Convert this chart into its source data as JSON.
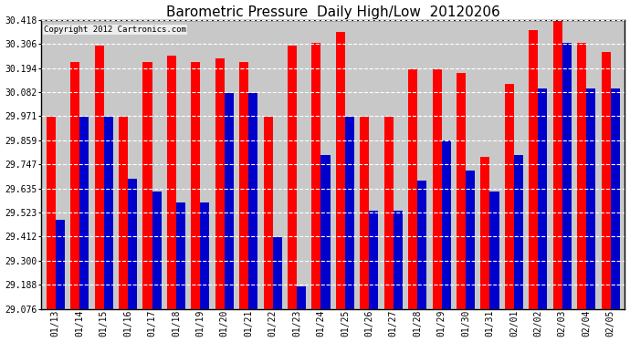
{
  "title": "Barometric Pressure  Daily High/Low  20120206",
  "copyright": "Copyright 2012 Cartronics.com",
  "dates": [
    "01/13",
    "01/14",
    "01/15",
    "01/16",
    "01/17",
    "01/18",
    "01/19",
    "01/20",
    "01/21",
    "01/22",
    "01/23",
    "01/24",
    "01/25",
    "01/26",
    "01/27",
    "01/28",
    "01/29",
    "01/30",
    "01/31",
    "02/01",
    "02/02",
    "02/03",
    "02/04",
    "02/05"
  ],
  "highs": [
    29.97,
    30.22,
    30.3,
    29.97,
    30.22,
    30.25,
    30.22,
    30.24,
    30.22,
    29.97,
    30.3,
    30.31,
    30.36,
    29.97,
    29.97,
    30.19,
    30.19,
    30.17,
    29.78,
    30.12,
    30.37,
    30.43,
    30.31,
    30.27
  ],
  "lows": [
    29.49,
    29.97,
    29.97,
    29.68,
    29.62,
    29.57,
    29.57,
    30.08,
    30.08,
    29.41,
    29.18,
    29.79,
    29.97,
    29.53,
    29.53,
    29.67,
    29.86,
    29.72,
    29.62,
    29.79,
    30.1,
    30.31,
    30.1,
    30.1
  ],
  "ylim_min": 29.076,
  "ylim_max": 30.418,
  "yticks": [
    29.076,
    29.188,
    29.3,
    29.412,
    29.523,
    29.635,
    29.747,
    29.859,
    29.971,
    30.082,
    30.194,
    30.306,
    30.418
  ],
  "high_color": "#ff0000",
  "low_color": "#0000cc",
  "bg_color": "#ffffff",
  "plot_bg": "#c8c8c8",
  "grid_color": "#ffffff",
  "bar_width": 0.38,
  "title_fontsize": 11,
  "copyright_fontsize": 6.5
}
